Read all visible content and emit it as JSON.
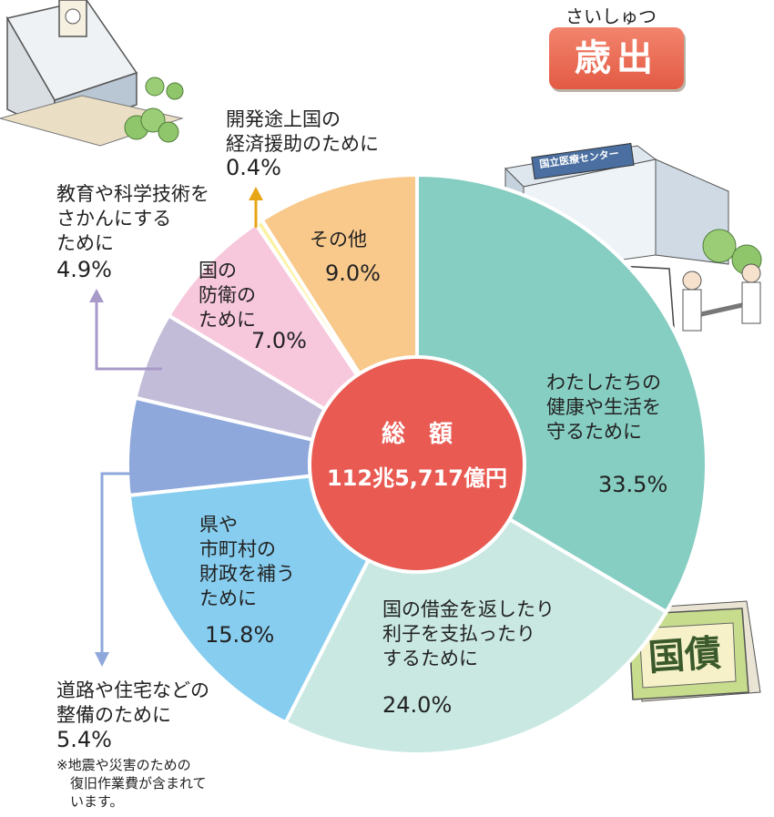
{
  "title": {
    "ruby": "さいしゅつ",
    "main": "歳出"
  },
  "center": {
    "line1": "総　額",
    "line2": "112兆5,717億円"
  },
  "note": "※地震や災害のための\n　復旧作業費が含まれて\n　います。",
  "illustration": {
    "hospital_sign": "国立医療センター",
    "bond_label": "国債"
  },
  "colors": {
    "health": "#86cdc2",
    "debt": "#c9e8e2",
    "local": "#87cdef",
    "roads": "#8ea8dc",
    "education": "#c3bcd9",
    "defense": "#f7c7dc",
    "aid": "#fbf3a3",
    "other": "#f8c98b",
    "center": "#e85a52",
    "badge": "#e35a44",
    "arrow_up": "#e7a617",
    "arrow_lilac": "#a79ac9",
    "arrow_blue": "#8ea8dc"
  },
  "chart_data": {
    "type": "pie",
    "total": "112兆5,717億円",
    "slices": [
      {
        "key": "health",
        "label": "わたしたちの\n健康や生活を\n守るために",
        "value": 33.5,
        "pct": "33.5%"
      },
      {
        "key": "debt",
        "label": "国の借金を返したり\n利子を支払ったり\nするために",
        "value": 24.0,
        "pct": "24.0%"
      },
      {
        "key": "local",
        "label": "県や\n市町村の\n財政を補う\nために",
        "value": 15.8,
        "pct": "15.8%"
      },
      {
        "key": "roads",
        "label": "道路や住宅などの\n整備のために",
        "value": 5.4,
        "pct": "5.4%"
      },
      {
        "key": "education",
        "label": "教育や科学技術を\nさかんにする\nために",
        "value": 4.9,
        "pct": "4.9%"
      },
      {
        "key": "defense",
        "label": "国の\n防衛の\nために",
        "value": 7.0,
        "pct": "7.0%"
      },
      {
        "key": "aid",
        "label": "開発途上国の\n経済援助のために",
        "value": 0.4,
        "pct": "0.4%"
      },
      {
        "key": "other",
        "label": "その他",
        "value": 9.0,
        "pct": "9.0%"
      }
    ]
  }
}
